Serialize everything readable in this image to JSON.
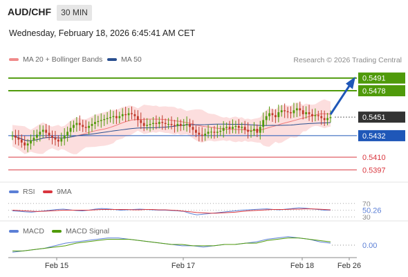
{
  "header": {
    "symbol": "AUD/CHF",
    "timeframe": "30 MIN",
    "datetime": "Wednesday, February 18, 2026 6:45:41 AM CET"
  },
  "legend": {
    "bb_label": "MA 20 + Bollinger Bands",
    "ma50_label": "MA 50",
    "rsi_label": "RSI",
    "rsi_ma_label": "9MA",
    "macd_label": "MACD",
    "macd_signal_label": "MACD Signal"
  },
  "credit": "Research © 2026 Trading Central",
  "colors": {
    "green": "#4f9a0a",
    "blue": "#1f57b8",
    "red": "#d9363e",
    "bb_fill": "#fbd3d3",
    "candle_up": "#4f9a0a",
    "candle_down": "#c0392b",
    "ma50": "#2a4f8f",
    "rsi": "#5b7fd6",
    "rsi_ma": "#d9363e",
    "macd": "#5b7fd6",
    "macd_signal": "#4f9a0a"
  },
  "chart_data": [
    {
      "type": "candlestick",
      "title": "AUD/CHF",
      "x_ticks": [
        "Feb 15",
        "Feb 17",
        "Feb 18",
        "Feb 26"
      ],
      "ylim": [
        0.5388,
        0.55
      ],
      "levels": [
        {
          "value": 0.5491,
          "label": "0.5491",
          "color": "#4f9a0a"
        },
        {
          "value": 0.5478,
          "label": "0.5478",
          "color": "#4f9a0a"
        },
        {
          "value": 0.5451,
          "label": "0.5451",
          "color": "#333333"
        },
        {
          "value": 0.5432,
          "label": "0.5432",
          "color": "#1f57b8"
        },
        {
          "value": 0.541,
          "label": "0.5410",
          "color": "#d9363e"
        },
        {
          "value": 0.5397,
          "label": "0.5397",
          "color": "#d9363e"
        }
      ],
      "close": [
        0.5432,
        0.543,
        0.5428,
        0.5425,
        0.5422,
        0.5424,
        0.5427,
        0.543,
        0.5433,
        0.5436,
        0.5438,
        0.5435,
        0.5432,
        0.543,
        0.5428,
        0.5426,
        0.5429,
        0.5432,
        0.5436,
        0.544,
        0.5443,
        0.5445,
        0.5443,
        0.5441,
        0.544,
        0.5442,
        0.5444,
        0.5446,
        0.5447,
        0.5448,
        0.5449,
        0.545,
        0.5451,
        0.5452,
        0.545,
        0.5452,
        0.5454,
        0.5453,
        0.5455,
        0.5454,
        0.5452,
        0.5448,
        0.5445,
        0.5442,
        0.5443,
        0.5444,
        0.5445,
        0.5444,
        0.5446,
        0.5445,
        0.5444,
        0.5444,
        0.5443,
        0.5442,
        0.5444,
        0.5442,
        0.5443,
        0.5444,
        0.5441,
        0.5438,
        0.5435,
        0.5433,
        0.5432,
        0.5434,
        0.5436,
        0.5436,
        0.5435,
        0.5436,
        0.5437,
        0.544,
        0.5441,
        0.5439,
        0.5441,
        0.5442,
        0.544,
        0.5441,
        0.5438,
        0.5436,
        0.5437,
        0.5439,
        0.5435,
        0.5441,
        0.5448,
        0.5452,
        0.5455,
        0.5453,
        0.5451,
        0.5456,
        0.5458,
        0.5457,
        0.5456,
        0.5455,
        0.5458,
        0.546,
        0.5458,
        0.5454,
        0.5456,
        0.5454,
        0.5452,
        0.5453,
        0.5452,
        0.545,
        0.5448,
        0.545,
        0.5451
      ],
      "last_price": 0.5451,
      "projection": {
        "from_index": 104,
        "to_value": 0.5491
      },
      "x_label_positions": [
        16,
        57,
        96,
        124
      ]
    },
    {
      "type": "line",
      "title": "RSI",
      "levels": [
        70,
        50,
        30
      ],
      "ylim": [
        20,
        80
      ],
      "last_value": "50.26",
      "series": [
        {
          "name": "RSI",
          "values": [
            48,
            47,
            45,
            44,
            46,
            48,
            50,
            52,
            53,
            51,
            49,
            48,
            50,
            53,
            55,
            54,
            52,
            50,
            51,
            52,
            53,
            52,
            51,
            50,
            50,
            49,
            48,
            46,
            40,
            36,
            38,
            40,
            42,
            44,
            46,
            48,
            50,
            51,
            52,
            53,
            54,
            52,
            51,
            53,
            55,
            57,
            56,
            54,
            52,
            50,
            50
          ]
        },
        {
          "name": "9MA",
          "values": [
            50,
            49,
            48,
            47,
            46,
            47,
            48,
            49,
            50,
            50,
            50,
            50,
            50,
            51,
            52,
            52,
            52,
            52,
            52,
            51,
            51,
            52,
            52,
            51,
            51,
            50,
            49,
            47,
            45,
            43,
            42,
            41,
            41,
            42,
            43,
            44,
            46,
            48,
            49,
            50,
            51,
            52,
            52,
            52,
            53,
            53,
            54,
            54,
            53,
            52,
            51
          ]
        }
      ]
    },
    {
      "type": "line",
      "title": "MACD",
      "last_value": "0.00",
      "series": [
        {
          "name": "MACD",
          "values": [
            -6,
            -5,
            -4,
            -3,
            -1,
            1,
            2,
            3,
            4,
            5,
            5,
            4,
            3,
            2,
            1,
            0,
            -1,
            -1,
            -2,
            -1,
            0,
            0,
            1,
            2,
            4,
            5,
            6,
            5,
            4,
            2,
            1
          ]
        },
        {
          "name": "MACD Signal",
          "values": [
            -5,
            -5,
            -4,
            -3,
            -2,
            -1,
            1,
            2,
            3,
            4,
            4,
            4,
            3,
            2,
            1,
            0,
            0,
            -1,
            -1,
            -1,
            0,
            0,
            1,
            1,
            3,
            4,
            5,
            5,
            4,
            3,
            2
          ]
        }
      ]
    }
  ]
}
